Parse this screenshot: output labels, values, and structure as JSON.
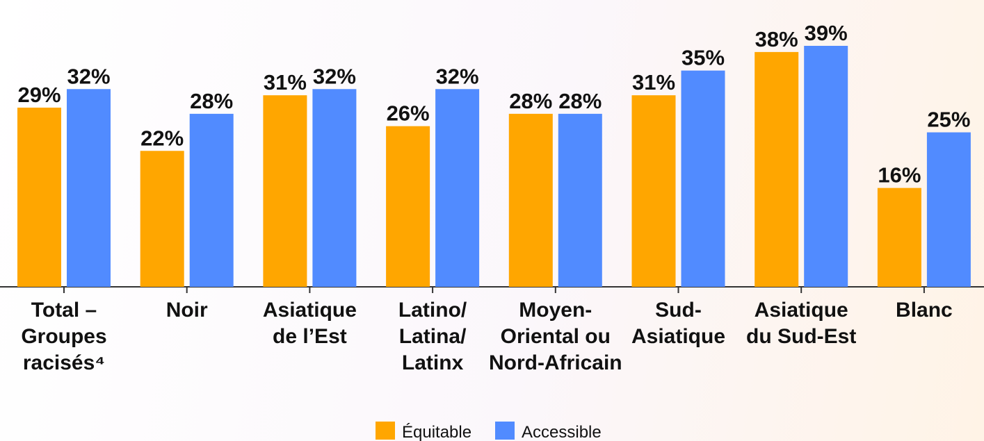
{
  "chart_data": {
    "type": "bar",
    "categories": [
      [
        "Total –",
        "Groupes",
        "racisés⁴"
      ],
      [
        "Noir"
      ],
      [
        "Asiatique",
        "de l’Est"
      ],
      [
        "Latino/",
        "Latina/",
        "Latinx"
      ],
      [
        "Moyen-",
        "Oriental ou",
        "Nord-Africain"
      ],
      [
        "Sud-",
        "Asiatique"
      ],
      [
        "Asiatique",
        "du Sud-Est"
      ],
      [
        "Blanc"
      ]
    ],
    "series": [
      {
        "name": "Équitable",
        "color": "#ffa600",
        "values": [
          29,
          22,
          31,
          26,
          28,
          31,
          38,
          16
        ],
        "value_labels": [
          "29%",
          "22%",
          "31%",
          "26%",
          "28%",
          "31%",
          "38%",
          "16%"
        ]
      },
      {
        "name": "Accessible",
        "color": "#518bff",
        "values": [
          32,
          28,
          32,
          32,
          28,
          35,
          39,
          25
        ],
        "value_labels": [
          "32%",
          "28%",
          "32%",
          "32%",
          "28%",
          "35%",
          "39%",
          "25%"
        ]
      }
    ],
    "legend": "bottom"
  }
}
